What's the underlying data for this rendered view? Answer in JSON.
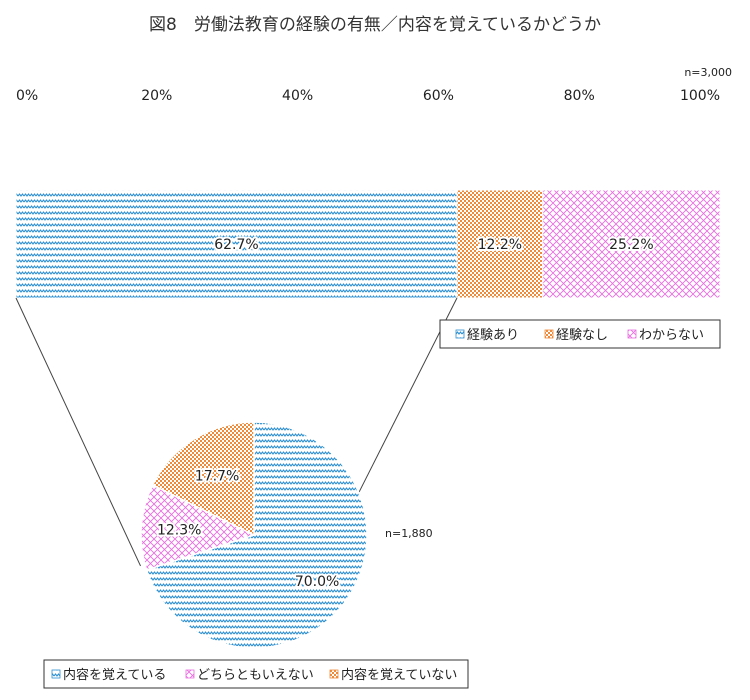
{
  "figure_title": "図8　労働法教育の経験の有無／内容を覚えているかどうか",
  "chart_data": [
    {
      "type": "bar",
      "orientation": "horizontal",
      "stacked": "percent",
      "sample_note": "n=3,000",
      "xticks": [
        "0%",
        "20%",
        "40%",
        "60%",
        "80%",
        "100%"
      ],
      "xlim": [
        0,
        100
      ],
      "series": [
        {
          "name": "経験あり",
          "value": 62.7,
          "label": "62.7%",
          "color": "#2e90d0",
          "pattern": "zigzag"
        },
        {
          "name": "経験なし",
          "value": 12.2,
          "label": "12.2%",
          "color": "#ee8a3a",
          "pattern": "checker"
        },
        {
          "name": "わからない",
          "value": 25.2,
          "label": "25.2%",
          "color": "#ea6ee0",
          "pattern": "crosshatch"
        }
      ],
      "legend_position": "bottom-right"
    },
    {
      "type": "pie",
      "sample_note": "n=1,880",
      "slices": [
        {
          "name": "内容を覚えている",
          "value": 70.0,
          "label": "70.0%",
          "color": "#2e90d0",
          "pattern": "zigzag"
        },
        {
          "name": "どちらともいえない",
          "value": 12.3,
          "label": "12.3%",
          "color": "#ea6ee0",
          "pattern": "crosshatch"
        },
        {
          "name": "内容を覚えていない",
          "value": 17.7,
          "label": "17.7%",
          "color": "#ee8a3a",
          "pattern": "checker"
        }
      ],
      "legend_position": "bottom"
    }
  ]
}
